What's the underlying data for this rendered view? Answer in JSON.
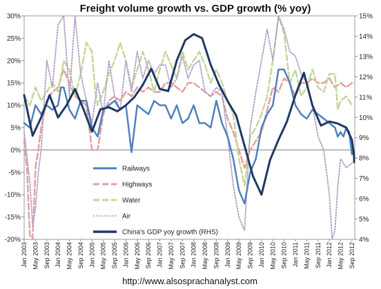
{
  "chart_data": {
    "type": "line",
    "title": "Freight volume growth vs. GDP growth (% yoy)",
    "source": "http://www.alsosprachanalyst.com",
    "y_left": {
      "min": -20,
      "max": 30,
      "step": 5,
      "format": "percent"
    },
    "y_right": {
      "min": 4,
      "max": 15,
      "step": 1,
      "format": "percent"
    },
    "x_ticks": [
      "Jan 2003",
      "May 2003",
      "Sep 2003",
      "Jan 2004",
      "May 2004",
      "Sep 2004",
      "Jan 2005",
      "May 2005",
      "Sep 2005",
      "Jan 2006",
      "May 2006",
      "Sep 2006",
      "Jan 2007",
      "May 2007",
      "Sep 2007",
      "Jan 2008",
      "May 2008",
      "Sep 2008",
      "Jan 2009",
      "May 2009",
      "Sep 2009",
      "Jan 2010",
      "May 2010",
      "Sep 2010",
      "Jan 2011",
      "May 2011",
      "Sep 2011",
      "Jan 2012",
      "May 2012",
      "Sep 2012"
    ],
    "x_range_months": [
      0,
      117
    ],
    "legend": [
      "Railways",
      "Highways",
      "Water",
      "Air",
      "China's GDP yoy growth (RHS)"
    ],
    "series": [
      {
        "name": "Railways",
        "axis": "left",
        "color": "#4f81bd",
        "style": "solid",
        "points": [
          [
            0,
            6
          ],
          [
            2,
            5
          ],
          [
            4,
            10
          ],
          [
            6,
            8
          ],
          [
            8,
            10
          ],
          [
            10,
            9
          ],
          [
            12,
            10
          ],
          [
            13,
            14
          ],
          [
            14,
            14
          ],
          [
            16,
            9
          ],
          [
            18,
            7
          ],
          [
            20,
            11
          ],
          [
            22,
            11
          ],
          [
            24,
            5
          ],
          [
            26,
            3
          ],
          [
            28,
            9
          ],
          [
            30,
            10
          ],
          [
            32,
            11
          ],
          [
            34,
            9
          ],
          [
            36,
            10
          ],
          [
            38,
            -0.5
          ],
          [
            40,
            10
          ],
          [
            42,
            9
          ],
          [
            44,
            8
          ],
          [
            46,
            11
          ],
          [
            48,
            10
          ],
          [
            50,
            10
          ],
          [
            52,
            7
          ],
          [
            54,
            10
          ],
          [
            56,
            6
          ],
          [
            58,
            7
          ],
          [
            60,
            10
          ],
          [
            62,
            6
          ],
          [
            64,
            6
          ],
          [
            66,
            5
          ],
          [
            68,
            11
          ],
          [
            70,
            6
          ],
          [
            72,
            3
          ],
          [
            74,
            -2
          ],
          [
            76,
            -9
          ],
          [
            78,
            -12
          ],
          [
            80,
            -5
          ],
          [
            82,
            -2
          ],
          [
            84,
            5
          ],
          [
            86,
            8
          ],
          [
            88,
            10
          ],
          [
            90,
            18
          ],
          [
            92,
            18
          ],
          [
            94,
            15
          ],
          [
            96,
            10
          ],
          [
            98,
            8
          ],
          [
            100,
            7
          ],
          [
            102,
            9
          ],
          [
            104,
            8
          ],
          [
            106,
            7
          ],
          [
            108,
            6
          ],
          [
            110,
            5
          ],
          [
            111,
            3
          ],
          [
            112,
            4
          ],
          [
            113,
            3
          ],
          [
            114,
            5
          ],
          [
            115,
            4
          ],
          [
            116,
            -1
          ]
        ]
      },
      {
        "name": "Highways",
        "axis": "left",
        "color": "#e0a09e",
        "style": "dash",
        "points": [
          [
            0,
            2
          ],
          [
            1,
            -4
          ],
          [
            2,
            -19
          ],
          [
            3,
            -20
          ],
          [
            4,
            -4
          ],
          [
            5,
            0
          ],
          [
            6,
            5
          ],
          [
            8,
            11
          ],
          [
            10,
            13
          ],
          [
            12,
            14
          ],
          [
            14,
            18
          ],
          [
            16,
            15
          ],
          [
            18,
            12
          ],
          [
            20,
            11
          ],
          [
            22,
            10
          ],
          [
            24,
            0
          ],
          [
            26,
            0
          ],
          [
            28,
            8
          ],
          [
            30,
            11
          ],
          [
            32,
            12
          ],
          [
            34,
            11
          ],
          [
            36,
            13
          ],
          [
            38,
            12
          ],
          [
            40,
            14
          ],
          [
            42,
            13
          ],
          [
            44,
            14
          ],
          [
            46,
            13
          ],
          [
            48,
            13
          ],
          [
            50,
            15
          ],
          [
            52,
            15
          ],
          [
            54,
            14
          ],
          [
            56,
            13
          ],
          [
            58,
            15
          ],
          [
            60,
            15
          ],
          [
            62,
            14
          ],
          [
            64,
            13
          ],
          [
            66,
            12
          ],
          [
            68,
            13
          ],
          [
            70,
            12
          ],
          [
            72,
            7
          ],
          [
            74,
            4
          ],
          [
            76,
            0
          ],
          [
            78,
            -4
          ],
          [
            80,
            0
          ],
          [
            82,
            2
          ],
          [
            84,
            4
          ],
          [
            86,
            9
          ],
          [
            88,
            14
          ],
          [
            90,
            13
          ],
          [
            92,
            16
          ],
          [
            94,
            15
          ],
          [
            96,
            12
          ],
          [
            98,
            15
          ],
          [
            100,
            15
          ],
          [
            102,
            16
          ],
          [
            104,
            15
          ],
          [
            106,
            15
          ],
          [
            108,
            16
          ],
          [
            110,
            14
          ],
          [
            112,
            15
          ],
          [
            114,
            14
          ],
          [
            116,
            15
          ]
        ]
      },
      {
        "name": "Water",
        "axis": "left",
        "color": "#c4d79b",
        "style": "dash",
        "points": [
          [
            0,
            12
          ],
          [
            2,
            10
          ],
          [
            4,
            14
          ],
          [
            6,
            11
          ],
          [
            8,
            13
          ],
          [
            10,
            15
          ],
          [
            12,
            13
          ],
          [
            14,
            20
          ],
          [
            16,
            18
          ],
          [
            18,
            12
          ],
          [
            20,
            17
          ],
          [
            22,
            24
          ],
          [
            24,
            22
          ],
          [
            25,
            14
          ],
          [
            26,
            10
          ],
          [
            28,
            13
          ],
          [
            30,
            17
          ],
          [
            32,
            20
          ],
          [
            34,
            24
          ],
          [
            36,
            20
          ],
          [
            38,
            14
          ],
          [
            40,
            18
          ],
          [
            42,
            22
          ],
          [
            44,
            18
          ],
          [
            46,
            13
          ],
          [
            48,
            18
          ],
          [
            50,
            22
          ],
          [
            52,
            19
          ],
          [
            54,
            16
          ],
          [
            56,
            22
          ],
          [
            58,
            18
          ],
          [
            60,
            20
          ],
          [
            62,
            22
          ],
          [
            64,
            19
          ],
          [
            66,
            15
          ],
          [
            68,
            18
          ],
          [
            70,
            15
          ],
          [
            72,
            11
          ],
          [
            74,
            8
          ],
          [
            76,
            -2
          ],
          [
            78,
            -8
          ],
          [
            80,
            3
          ],
          [
            82,
            5
          ],
          [
            84,
            8
          ],
          [
            86,
            12
          ],
          [
            88,
            20
          ],
          [
            90,
            30
          ],
          [
            92,
            26
          ],
          [
            94,
            15
          ],
          [
            96,
            18
          ],
          [
            98,
            12
          ],
          [
            100,
            14
          ],
          [
            102,
            18
          ],
          [
            104,
            14
          ],
          [
            106,
            13
          ],
          [
            108,
            17
          ],
          [
            110,
            17
          ],
          [
            111,
            9
          ],
          [
            112,
            11
          ],
          [
            114,
            12
          ],
          [
            116,
            10
          ]
        ]
      },
      {
        "name": "Air",
        "axis": "left",
        "color": "#b3a2c7",
        "style": "dot",
        "points": [
          [
            0,
            4
          ],
          [
            2,
            -7
          ],
          [
            3,
            -17
          ],
          [
            4,
            -13
          ],
          [
            5,
            -5
          ],
          [
            6,
            0
          ],
          [
            8,
            20
          ],
          [
            10,
            14
          ],
          [
            12,
            28
          ],
          [
            14,
            30
          ],
          [
            16,
            12
          ],
          [
            18,
            30
          ],
          [
            20,
            17
          ],
          [
            22,
            11
          ],
          [
            24,
            6
          ],
          [
            26,
            15
          ],
          [
            28,
            8
          ],
          [
            30,
            20
          ],
          [
            32,
            12
          ],
          [
            34,
            9
          ],
          [
            36,
            20
          ],
          [
            38,
            13
          ],
          [
            40,
            22
          ],
          [
            42,
            16
          ],
          [
            44,
            20
          ],
          [
            46,
            17
          ],
          [
            48,
            19
          ],
          [
            50,
            19
          ],
          [
            52,
            14
          ],
          [
            54,
            16
          ],
          [
            56,
            21
          ],
          [
            58,
            16
          ],
          [
            60,
            19
          ],
          [
            62,
            20
          ],
          [
            64,
            13
          ],
          [
            66,
            12
          ],
          [
            68,
            14
          ],
          [
            70,
            13
          ],
          [
            72,
            3
          ],
          [
            74,
            -8
          ],
          [
            76,
            -15
          ],
          [
            78,
            -18
          ],
          [
            80,
            5
          ],
          [
            82,
            13
          ],
          [
            84,
            20
          ],
          [
            86,
            27
          ],
          [
            88,
            20
          ],
          [
            90,
            30
          ],
          [
            92,
            27
          ],
          [
            94,
            22
          ],
          [
            96,
            21
          ],
          [
            98,
            17
          ],
          [
            100,
            15
          ],
          [
            102,
            10
          ],
          [
            104,
            3
          ],
          [
            106,
            0
          ],
          [
            108,
            -10
          ],
          [
            109,
            -20
          ],
          [
            110,
            -18
          ],
          [
            111,
            -8
          ],
          [
            112,
            -2
          ],
          [
            114,
            -4
          ],
          [
            116,
            -3
          ]
        ]
      },
      {
        "name": "China's GDP yoy growth (RHS)",
        "axis": "right",
        "color": "#1f3864",
        "style": "solid-thick",
        "points": [
          [
            0,
            11.1
          ],
          [
            3,
            9.1
          ],
          [
            6,
            10.0
          ],
          [
            9,
            11.1
          ],
          [
            12,
            10.0
          ],
          [
            15,
            10.6
          ],
          [
            18,
            11.4
          ],
          [
            21,
            10.4
          ],
          [
            24,
            9.3
          ],
          [
            27,
            10.4
          ],
          [
            30,
            10.5
          ],
          [
            33,
            10.3
          ],
          [
            36,
            10.6
          ],
          [
            39,
            11.0
          ],
          [
            42,
            11.6
          ],
          [
            45,
            12.4
          ],
          [
            48,
            11.4
          ],
          [
            51,
            11.3
          ],
          [
            54,
            12.8
          ],
          [
            57,
            13.8
          ],
          [
            60,
            14.1
          ],
          [
            63,
            13.9
          ],
          [
            66,
            12.6
          ],
          [
            69,
            11.6
          ],
          [
            72,
            10.8
          ],
          [
            75,
            10.1
          ],
          [
            78,
            8.6
          ],
          [
            81,
            7.1
          ],
          [
            84,
            6.2
          ],
          [
            87,
            7.9
          ],
          [
            90,
            8.9
          ],
          [
            93,
            9.8
          ],
          [
            96,
            11.1
          ],
          [
            99,
            12.2
          ],
          [
            102,
            10.6
          ],
          [
            105,
            9.6
          ],
          [
            108,
            9.8
          ],
          [
            111,
            9.7
          ],
          [
            114,
            9.5
          ],
          [
            116,
            8.9
          ],
          [
            118,
            8.1
          ],
          [
            120,
            7.8
          ]
        ]
      }
    ]
  }
}
